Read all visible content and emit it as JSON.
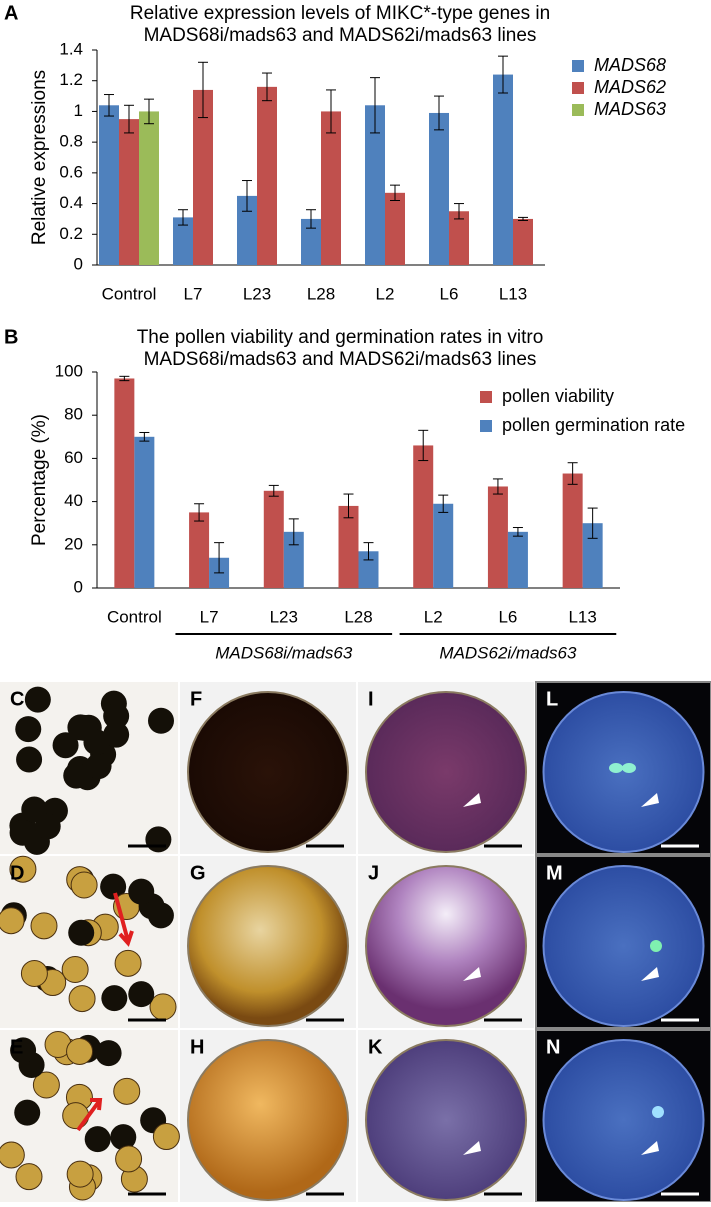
{
  "chart_data": [
    {
      "type": "bar",
      "panel": "A",
      "title": [
        "Relative expression levels of MIKC*-type genes in",
        "MADS68i/mads63 and MADS62i/mads63 lines"
      ],
      "y_label": "Relative expressions",
      "categories": [
        "Control",
        "L7",
        "L23",
        "L28",
        "L2",
        "L6",
        "L13"
      ],
      "series": [
        {
          "name": "MADS68",
          "color": "#4f81bd",
          "values": [
            1.04,
            0.31,
            0.45,
            0.3,
            1.04,
            0.99,
            1.24
          ],
          "errors": [
            0.07,
            0.05,
            0.1,
            0.06,
            0.18,
            0.11,
            0.12
          ]
        },
        {
          "name": "MADS62",
          "color": "#c0504d",
          "values": [
            0.95,
            1.14,
            1.16,
            1.0,
            0.47,
            0.35,
            0.3
          ],
          "errors": [
            0.09,
            0.18,
            0.09,
            0.14,
            0.05,
            0.05,
            0.01
          ]
        },
        {
          "name": "MADS63",
          "color": "#9bbb59",
          "values": [
            1.0,
            null,
            null,
            null,
            null,
            null,
            null
          ],
          "errors": [
            0.08,
            null,
            null,
            null,
            null,
            null,
            null
          ]
        }
      ],
      "ylim": [
        0,
        1.4
      ],
      "yticks": [
        0,
        0.2,
        0.4,
        0.6,
        0.8,
        1,
        1.2,
        1.4
      ],
      "legend": "right"
    },
    {
      "type": "bar",
      "panel": "B",
      "title": [
        "The  pollen viability and germination rates in vitro",
        "MADS68i/mads63 and MADS62i/mads63 lines"
      ],
      "y_label": "Percentage (%)",
      "categories": [
        "Control",
        "L7",
        "L23",
        "L28",
        "L2",
        "L6",
        "L13"
      ],
      "series": [
        {
          "name": "pollen viability",
          "color": "#c0504d",
          "values": [
            97,
            35,
            45,
            38,
            66,
            47,
            53
          ],
          "errors": [
            1,
            4,
            2.5,
            5.5,
            7,
            3.5,
            5
          ]
        },
        {
          "name": "pollen germination rate",
          "color": "#4f81bd",
          "values": [
            70,
            14,
            26,
            17,
            39,
            26,
            30
          ],
          "errors": [
            2,
            7,
            6,
            4,
            4,
            2,
            7
          ]
        }
      ],
      "groups": [
        {
          "label": "MADS68i/mads63",
          "categories": [
            "L7",
            "L23",
            "L28"
          ]
        },
        {
          "label": "MADS62i/mads63",
          "categories": [
            "L2",
            "L6",
            "L13"
          ]
        }
      ],
      "ylim": [
        0,
        100
      ],
      "yticks": [
        0,
        20,
        40,
        60,
        80,
        100
      ],
      "legend": "upper right"
    }
  ],
  "micrographs": {
    "labels": [
      "C",
      "F",
      "I",
      "L",
      "D",
      "G",
      "J",
      "M",
      "E",
      "H",
      "K",
      "N"
    ]
  }
}
